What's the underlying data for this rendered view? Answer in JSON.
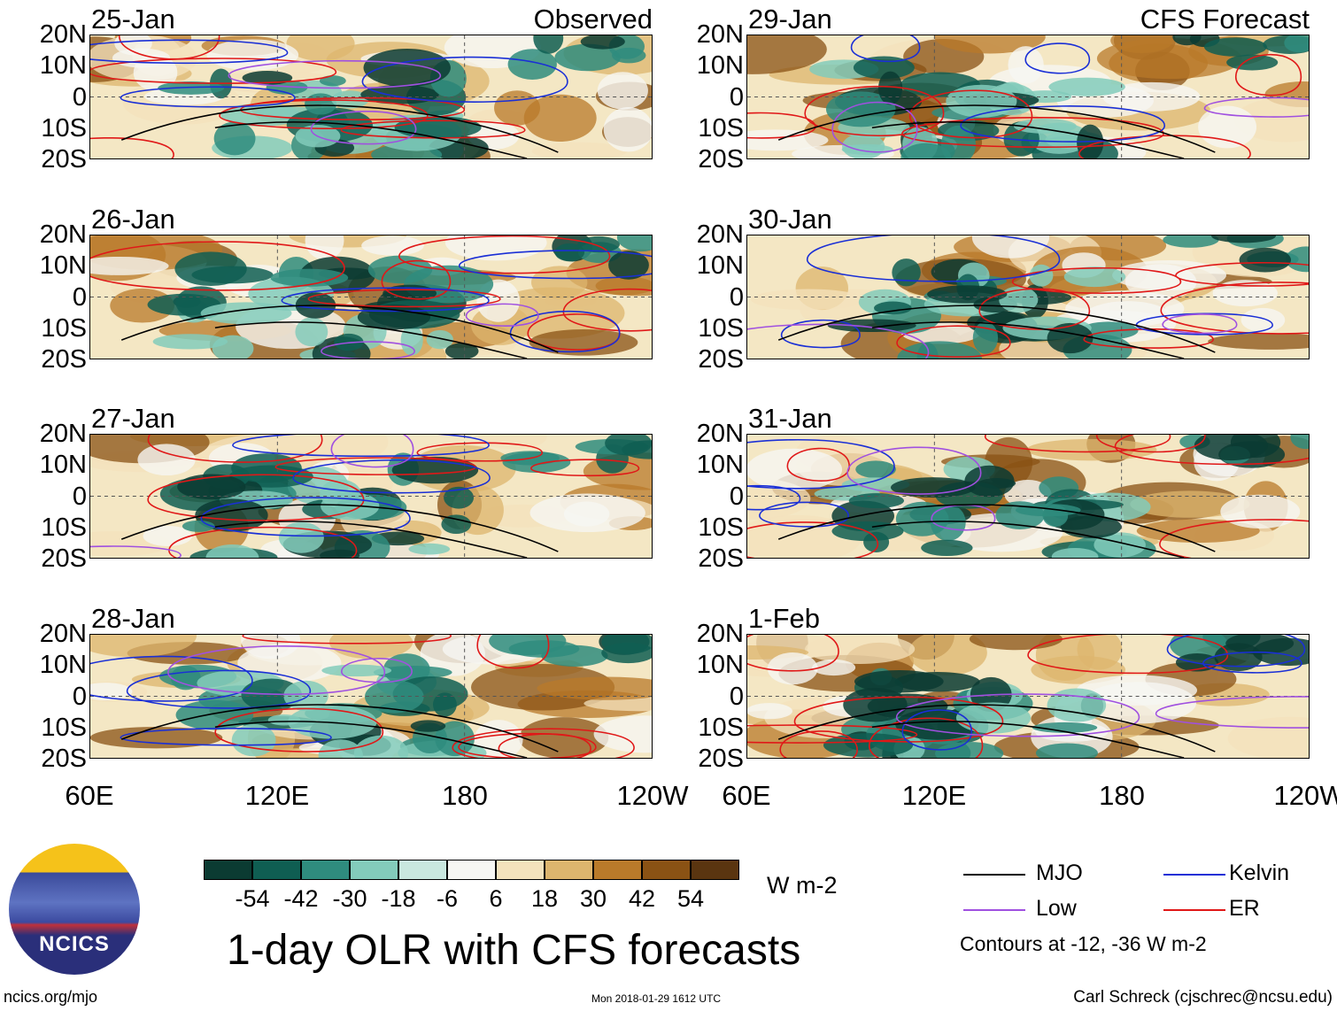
{
  "chart_data": {
    "type": "heatmap",
    "title": "1-day OLR with CFS forecasts",
    "units": "W m-2",
    "x_ticks": [
      "60E",
      "120E",
      "180",
      "120W"
    ],
    "y_ticks": [
      "20N",
      "10N",
      "0",
      "10S",
      "20S"
    ],
    "lon_range": [
      60,
      240
    ],
    "lat_range": [
      -20,
      20
    ],
    "observed_label": "Observed",
    "forecast_label": "CFS Forecast",
    "observed_dates": [
      "25-Jan",
      "26-Jan",
      "27-Jan",
      "28-Jan"
    ],
    "forecast_dates": [
      "29-Jan",
      "30-Jan",
      "31-Jan",
      "1-Feb"
    ],
    "colorbar": {
      "tick_labels": [
        "-54",
        "-42",
        "-30",
        "-18",
        "-6",
        "6",
        "18",
        "30",
        "42",
        "54"
      ],
      "colors": [
        "#0b3b32",
        "#0f5e52",
        "#2f8c7e",
        "#83cbbb",
        "#c9e8df",
        "#f6f6f3",
        "#f4e2bc",
        "#ddb56e",
        "#b97a2a",
        "#8a5214",
        "#5a3510"
      ]
    },
    "legend": [
      {
        "label": "MJO",
        "color": "#000000"
      },
      {
        "label": "Kelvin",
        "color": "#1a2fd6"
      },
      {
        "label": "Low",
        "color": "#a050e0"
      },
      {
        "label": "ER",
        "color": "#e01818"
      }
    ],
    "contour_note": "Contours at -12, -36 W m-2"
  },
  "footer": {
    "logo_text": "NCICS",
    "url": "ncics.org/mjo",
    "timestamp": "Mon 2018-01-29 1612 UTC",
    "credit": "Carl Schreck (cjschrec@ncsu.edu)"
  }
}
